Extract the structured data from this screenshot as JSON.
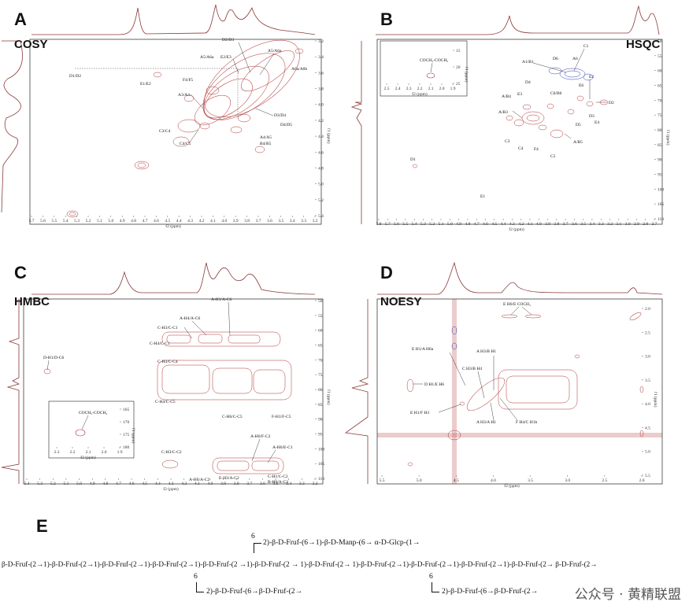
{
  "panels": {
    "A": {
      "letter": "A",
      "technique": "COSY",
      "labels": [
        "D1/D2",
        "E1/E2",
        "F4/F5",
        "A5/A6a",
        "E2/E3",
        "D2/D3",
        "A5/A6a",
        "A6a/A6b",
        "A3/A4",
        "C3/C4",
        "D3/D4",
        "D4/D5",
        "C4/C5",
        "A4/A5",
        "B4/B5"
      ],
      "xticks": [
        "5.7",
        "5.6",
        "5.5",
        "5.4",
        "5.3",
        "5.2",
        "5.1",
        "5.0",
        "4.9",
        "4.8",
        "4.7",
        "4.6",
        "4.5",
        "4.4",
        "4.3",
        "4.2",
        "4.1",
        "4.0",
        "3.9",
        "3.8",
        "3.7",
        "3.6",
        "3.5",
        "3.4",
        "3.3",
        "3.2"
      ],
      "yticks": [
        "3.2",
        "3.4",
        "3.6",
        "3.8",
        "4.0",
        "4.2",
        "4.4",
        "4.6",
        "4.8",
        "5.0",
        "5.2",
        "5.4"
      ],
      "xlabel": "f2 (ppm)",
      "ylabel": "f1 (ppm)"
    },
    "B": {
      "letter": "B",
      "technique": "HSQC",
      "labels": [
        "C1",
        "D6",
        "A6",
        "A1/B1",
        "E2",
        "C6/B6",
        "D4",
        "E6",
        "D2",
        "E3",
        "D3",
        "A/B4",
        "E4",
        "A/B3",
        "D5",
        "C3",
        "C4",
        "F4",
        "C5",
        "A/B5",
        "D1",
        "E1"
      ],
      "inset": {
        "label": "COCH₃-COCH₃",
        "xticks": [
          "2.5",
          "2.4",
          "2.3",
          "2.2",
          "2.1",
          "2.0",
          "1.9"
        ],
        "yticks": [
          "15",
          "20",
          "25"
        ],
        "xlabel": "f2 (ppm)",
        "ylabel": "f1 (ppm)"
      },
      "xticks": [
        "5.8",
        "5.7",
        "5.6",
        "5.5",
        "5.4",
        "5.3",
        "5.2",
        "5.1",
        "5.0",
        "4.9",
        "4.8",
        "4.7",
        "4.6",
        "4.5",
        "4.4",
        "4.3",
        "4.2",
        "4.1",
        "4.0",
        "3.9",
        "3.8",
        "3.7",
        "3.6",
        "3.5",
        "3.4",
        "3.3",
        "3.2",
        "3.1",
        "3.0",
        "2.9",
        "2.8",
        "2.7"
      ],
      "yticks": [
        "50",
        "55",
        "60",
        "65",
        "70",
        "75",
        "80",
        "85",
        "90",
        "95",
        "100",
        "105",
        "110"
      ],
      "xlabel": "f2 (ppm)",
      "ylabel": "f1 (ppm)"
    },
    "C": {
      "letter": "C",
      "technique": "HMBC",
      "labels": [
        "A-H1/A-C6",
        "A-H4/A-C6",
        "C-H3/C-C1",
        "C-H4/C-C1",
        "C-H3/C-C4",
        "D-H1/D-C6",
        "C-H4/C-C5",
        "C-H6/C-C5",
        "F-H1/F-C5",
        "A-H6/F-C2",
        "A-H6/E-C1",
        "C-H3/C-C2",
        "E-H3/A-C2",
        "C-H1/C-C2",
        "B-H6/A-C2",
        "A-H3/A-C2"
      ],
      "inset": {
        "label": "COCH₃-COCH₃",
        "xticks": [
          "2.3",
          "2.2",
          "2.1",
          "2.0",
          "1.9"
        ],
        "yticks": [
          "165",
          "170",
          "175",
          "180"
        ],
        "xlabel": "f2 (ppm)",
        "ylabel": "f1 (ppm)"
      },
      "xticks": [
        "5.4",
        "5.3",
        "5.2",
        "5.1",
        "5.0",
        "4.9",
        "4.8",
        "4.7",
        "4.6",
        "4.5",
        "4.4",
        "4.3",
        "4.2",
        "4.1",
        "4.0",
        "3.9",
        "3.8",
        "3.7",
        "3.6",
        "3.5",
        "3.4",
        "3.3",
        "3.2"
      ],
      "yticks": [
        "50",
        "55",
        "60",
        "65",
        "70",
        "75",
        "80",
        "85",
        "90",
        "95",
        "100",
        "105",
        "110"
      ],
      "xlabel": "f2 (ppm)",
      "ylabel": "f1 (ppm)"
    },
    "D": {
      "letter": "D",
      "technique": "NOESY",
      "labels": [
        "E H6/E COCH₃",
        "E H1/A H6a",
        "A H3/B H1",
        "C H3/B H4",
        "D H1/E H6",
        "E H1/F H3",
        "A H3/A H1",
        "F H4/C H1b"
      ],
      "xticks": [
        "5.5",
        "5.0",
        "4.5",
        "4.0",
        "3.5",
        "3.0",
        "2.5",
        "2.0"
      ],
      "yticks": [
        "2.0",
        "2.5",
        "3.0",
        "3.5",
        "4.0",
        "4.5",
        "5.0",
        "5.5"
      ],
      "xlabel": "f2 (ppm)",
      "ylabel": "f1 (ppm)"
    }
  },
  "scheme": {
    "letter": "E",
    "branch_top": "2)-β-D-Fruf-(6→1)-β-D-Manp-(6→ α-D-Glcp-(1→",
    "branch_top_num": "6",
    "main": "β-D-Fruf-(2→1)-β-D-Fruf-(2→1)-β-D-Fruf-(2→1)-β-D-Fruf-(2→1)-β-D-Fruf-(2 →1)-β-D-Fruf-(2 → 1)-β-D-Fruf-(2→ 1)-β-D-Fruf-(2→1)-β-D-Fruf-(2→1)-β-D-Fruf-(2→1)-β-D-Fruf-(2→ β-D-Fruf-(2→",
    "branch_left_num": "6",
    "branch_left": "2)-β-D-Fruf-(6→β-D-Fruf-(2→",
    "branch_right_num": "6",
    "branch_right": "2)-β-D-Fruf-(6→β-D-Fruf-(2→"
  },
  "watermark": "公众号 · 黄精联盟"
}
